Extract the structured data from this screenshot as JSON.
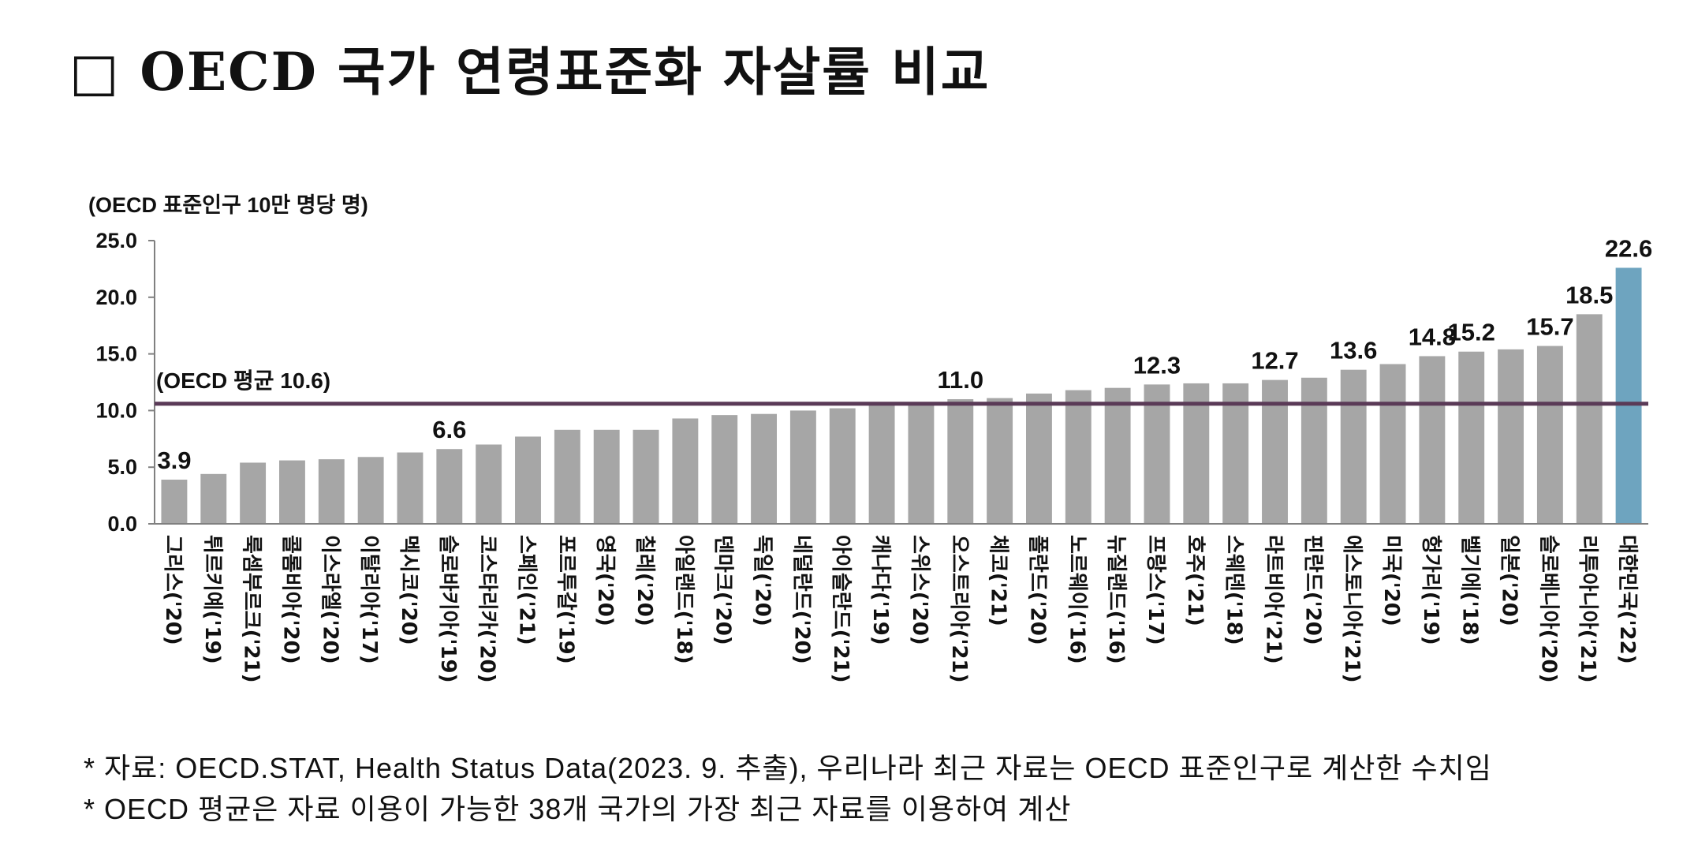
{
  "title": "□ OECD 국가 연령표준화 자살률 비교",
  "unit_label": "(OECD 표준인구 10만 명당 명)",
  "notes": [
    "* 자료: OECD.STAT, Health Status Data(2023. 9. 추출), 우리나라 최근 자료는 OECD 표준인구로 계산한 수치임",
    "* OECD 평균은 자료 이용이 가능한 38개 국가의 가장 최근 자료를 이용하여 계산"
  ],
  "colors": {
    "bar": "#a6a6a6",
    "highlight": "#6ea4bf",
    "average_line": "#5a3a57"
  },
  "chart_data": {
    "type": "bar",
    "ylim": [
      0,
      25
    ],
    "yticks": [
      "0.0",
      "5.0",
      "10.0",
      "15.0",
      "20.0",
      "25.0"
    ],
    "average": {
      "value": 10.6,
      "label": "(OECD 평균 10.6)"
    },
    "categories": [
      "그리스('20)",
      "튀르키예('19)",
      "룩셈부르크('21)",
      "콜롬비아('20)",
      "이스라엘('20)",
      "이탈리아('17)",
      "멕시코('20)",
      "슬로바키아('19)",
      "코스타리카('20)",
      "스페인('21)",
      "포르투갈('19)",
      "영국('20)",
      "칠레('20)",
      "아일랜드('18)",
      "덴마크('20)",
      "독일('20)",
      "네덜란드('20)",
      "아이슬란드('21)",
      "캐나다('19)",
      "스위스('20)",
      "오스트리아('21)",
      "체코('21)",
      "폴란드('20)",
      "노르웨이('16)",
      "뉴질랜드('16)",
      "프랑스('17)",
      "호주('21)",
      "스웨덴('18)",
      "라트비아('21)",
      "핀란드('20)",
      "에스토니아('21)",
      "미국('20)",
      "헝가리('19)",
      "벨기에('18)",
      "일본('20)",
      "슬로베니아('20)",
      "리투아니아('21)",
      "대한민국('22)"
    ],
    "values": [
      3.9,
      4.4,
      5.4,
      5.6,
      5.7,
      5.9,
      6.3,
      6.6,
      7.0,
      7.7,
      8.3,
      8.3,
      8.3,
      9.3,
      9.6,
      9.7,
      10.0,
      10.2,
      10.6,
      10.7,
      11.0,
      11.1,
      11.5,
      11.8,
      12.0,
      12.3,
      12.4,
      12.4,
      12.7,
      12.9,
      13.6,
      14.1,
      14.8,
      15.2,
      15.4,
      15.7,
      18.5,
      22.6
    ],
    "data_labels": {
      "0": "3.9",
      "7": "6.6",
      "20": "11.0",
      "25": "12.3",
      "28": "12.7",
      "30": "13.6",
      "32": "14.8",
      "33": "15.2",
      "35": "15.7",
      "36": "18.5",
      "37": "22.6"
    },
    "highlight_index": 37
  }
}
